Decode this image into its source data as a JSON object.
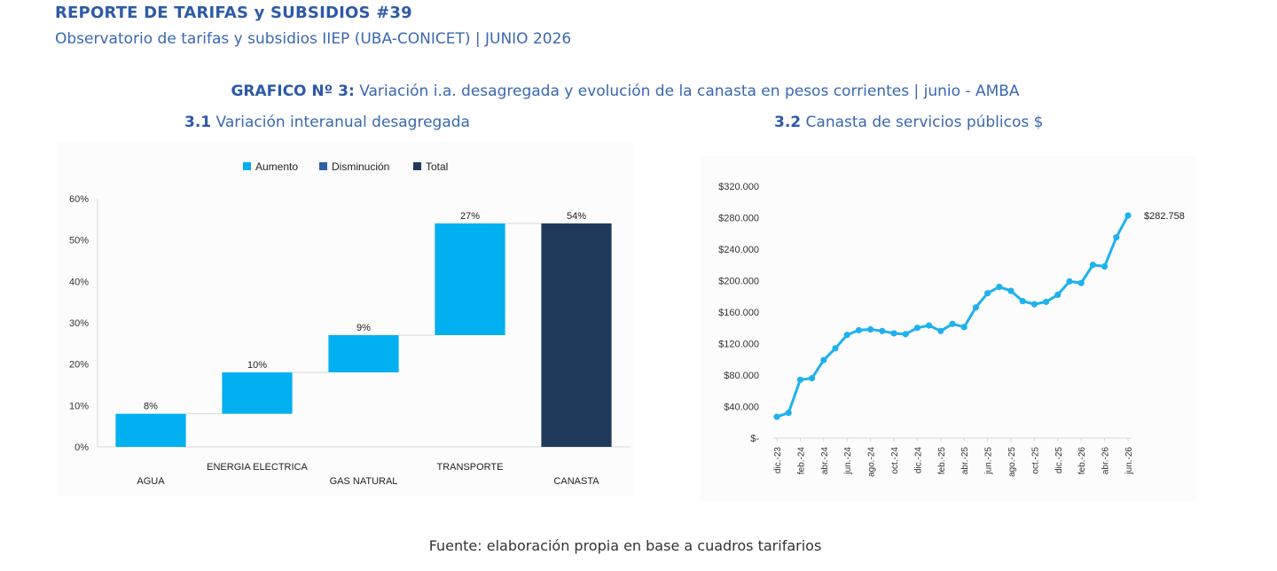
{
  "report": {
    "title": "REPORTE DE TARIFAS y SUBSIDIOS #39",
    "subtitle": "Observatorio de tarifas y subsidios IIEP (UBA-CONICET) | JUNIO 2026"
  },
  "figure": {
    "label": "GRAFICO Nº 3:",
    "title": "Variación i.a. desagregada y evolución de la canasta en pesos corrientes | junio - AMBA"
  },
  "panels": {
    "left": {
      "number": "3.1",
      "title": "Variación interanual desagregada"
    },
    "right": {
      "number": "3.2",
      "title": "Canasta de servicios públicos $"
    }
  },
  "colors": {
    "aumento": "#00b0f0",
    "disminucion": "#2e5fa6",
    "total": "#203a5c",
    "line": "#1fb1ee"
  },
  "chart_data": [
    {
      "type": "bar",
      "subtype": "waterfall",
      "legend": [
        "Aumento",
        "Disminución",
        "Total"
      ],
      "legend_position": "top",
      "categories": [
        "AGUA",
        "ENERGIA ELECTRICA",
        "GAS NATURAL",
        "TRANSPORTE",
        "CANASTA"
      ],
      "values": [
        8,
        10,
        9,
        27,
        54
      ],
      "kinds": [
        "Aumento",
        "Aumento",
        "Aumento",
        "Aumento",
        "Total"
      ],
      "data_labels": [
        "8%",
        "10%",
        "9%",
        "27%",
        "54%"
      ],
      "ylim": [
        0,
        60
      ],
      "yticks": [
        "0%",
        "10%",
        "20%",
        "30%",
        "40%",
        "50%",
        "60%"
      ],
      "grid": false
    },
    {
      "type": "line",
      "x": [
        "dic.-23",
        "ene.-24",
        "feb.-24",
        "mar.-24",
        "abr.-24",
        "may.-24",
        "jun.-24",
        "jul.-24",
        "ago.-24",
        "sept.-24",
        "oct.-24",
        "nov.-24",
        "dic.-24",
        "ene.-25",
        "feb.-25",
        "mar.-25",
        "abr.-25",
        "may.-25",
        "jun.-25",
        "jul.-25",
        "ago.-25",
        "sept.-25",
        "oct.-25",
        "nov.-25",
        "dic.-25",
        "ene.-26",
        "feb.-26",
        "mar.-26",
        "abr.-26",
        "may.-26",
        "jun.-26"
      ],
      "xtick_labels": [
        "dic.-23",
        "feb.-24",
        "abr.-24",
        "jun.-24",
        "ago.-24",
        "oct.-24",
        "dic.-24",
        "feb.-25",
        "abr.-25",
        "jun.-25",
        "ago.-25",
        "oct.-25",
        "dic.-25",
        "feb.-26",
        "abr.-26",
        "jun.-26"
      ],
      "values": [
        27000,
        32000,
        74000,
        76000,
        99000,
        114000,
        131000,
        137000,
        138000,
        136000,
        133000,
        132000,
        140000,
        143000,
        136000,
        145000,
        141000,
        166000,
        184000,
        192000,
        187000,
        174000,
        170000,
        173000,
        182000,
        199000,
        197000,
        220000,
        218000,
        255000,
        282758
      ],
      "end_label": "$282.758",
      "ylim": [
        0,
        320000
      ],
      "yticks": [
        "$-",
        "$40.000",
        "$80.000",
        "$120.000",
        "$160.000",
        "$200.000",
        "$240.000",
        "$280.000",
        "$320.000"
      ],
      "grid": false
    }
  ],
  "source": "Fuente: elaboración propia en base a cuadros tarifarios"
}
